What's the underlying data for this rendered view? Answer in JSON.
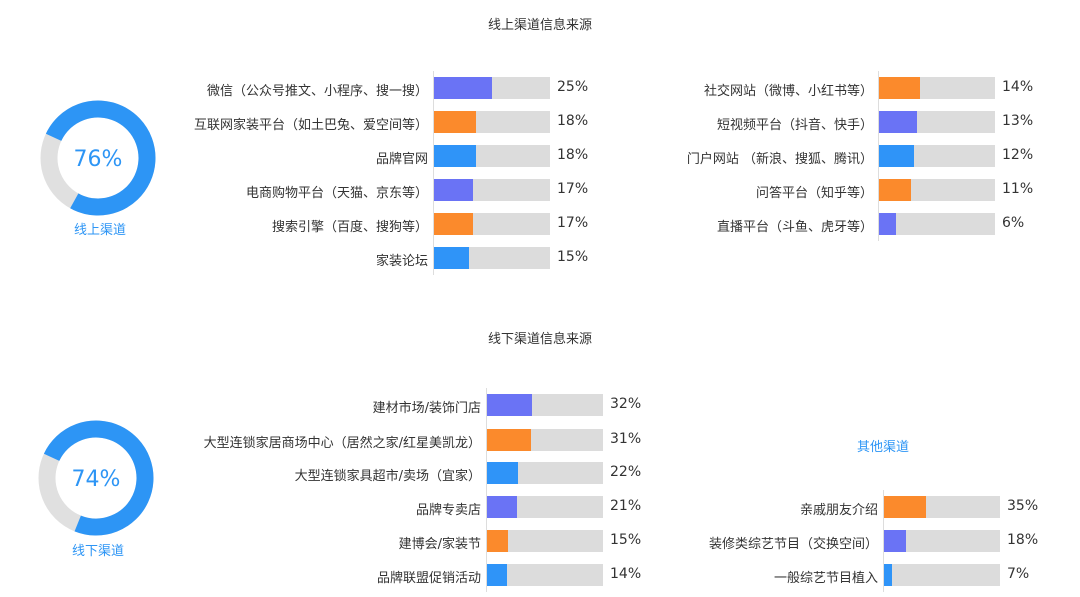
{
  "colors": {
    "purple": "#6a73f5",
    "orange": "#fb8a2c",
    "blue": "#2f94f8",
    "track": "#dcdcdc",
    "donut_gray": "#e0e0e0"
  },
  "chart_data": [
    {
      "type": "pie",
      "title": "线上渠道信息来源",
      "donut": true,
      "value": 76,
      "center_label": "76%",
      "label": "线上渠道"
    },
    {
      "type": "bar",
      "orientation": "horizontal",
      "categories": [
        "微信（公众号推文、小程序、搜一搜）",
        "互联网家装平台（如土巴兔、爱空间等）",
        "品牌官网",
        "电商购物平台（天猫、京东等）",
        "搜索引擎（百度、搜狗等）",
        "家装论坛"
      ],
      "values": [
        25,
        18,
        18,
        17,
        17,
        15
      ],
      "labels": [
        "25%",
        "18%",
        "18%",
        "17%",
        "17%",
        "15%"
      ],
      "colors": [
        "purple",
        "orange",
        "blue",
        "purple",
        "orange",
        "blue"
      ],
      "max": 50
    },
    {
      "type": "bar",
      "orientation": "horizontal",
      "categories": [
        "社交网站（微博、小红书等）",
        "短视频平台（抖音、快手）",
        "门户网站 （新浪、搜狐、腾讯）",
        "问答平台（知乎等）",
        "直播平台（斗鱼、虎牙等）"
      ],
      "values": [
        14,
        13,
        12,
        11,
        6
      ],
      "labels": [
        "14%",
        "13%",
        "12%",
        "11%",
        "6%"
      ],
      "colors": [
        "orange",
        "purple",
        "blue",
        "orange",
        "purple"
      ],
      "max": 40
    },
    {
      "type": "pie",
      "title": "线下渠道信息来源",
      "donut": true,
      "value": 74,
      "center_label": "74%",
      "label": "线下渠道"
    },
    {
      "type": "bar",
      "orientation": "horizontal",
      "categories": [
        "建材市场/装饰门店",
        "大型连锁家居商场中心（居然之家/红星美凯龙）",
        "大型连锁家具超市/卖场（宜家）",
        "品牌专卖店",
        "建博会/家装节",
        "品牌联盟促销活动"
      ],
      "values": [
        32,
        31,
        22,
        21,
        15,
        14
      ],
      "labels": [
        "32%",
        "31%",
        "22%",
        "21%",
        "15%",
        "14%"
      ],
      "colors": [
        "purple",
        "orange",
        "blue",
        "purple",
        "orange",
        "blue"
      ],
      "max": 82
    },
    {
      "type": "bar",
      "orientation": "horizontal",
      "title": "其他渠道",
      "categories": [
        "亲戚朋友介绍",
        "装修类综艺节目（交换空间）",
        "一般综艺节目植入"
      ],
      "values": [
        35,
        18,
        7
      ],
      "labels": [
        "35%",
        "18%",
        "7%"
      ],
      "colors": [
        "orange",
        "purple",
        "blue"
      ],
      "max": 97
    }
  ]
}
